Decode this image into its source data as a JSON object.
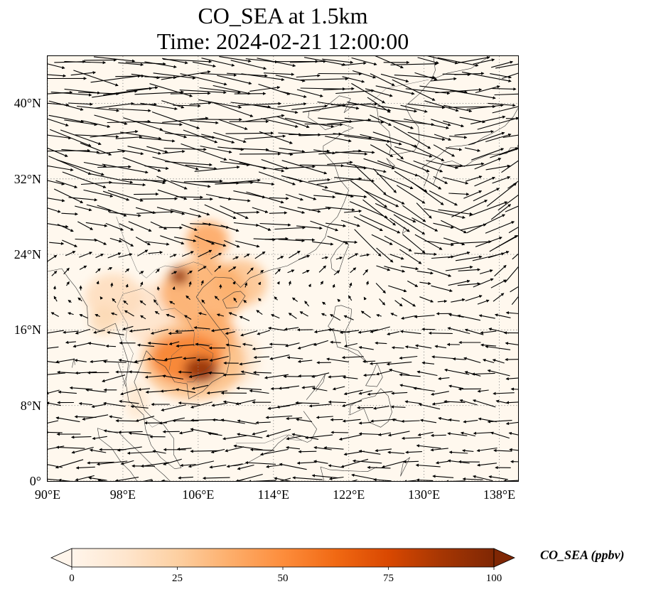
{
  "title": {
    "line1": "CO_SEA at 1.5km",
    "line2": "Time: 2024-02-21 12:00:00"
  },
  "map": {
    "extent": {
      "lon_min": 90,
      "lon_max": 140,
      "lat_min": 0,
      "lat_max": 45
    },
    "lat_ticks": [
      {
        "value": 0,
        "label": "0°"
      },
      {
        "value": 8,
        "label": "8°N"
      },
      {
        "value": 16,
        "label": "16°N"
      },
      {
        "value": 24,
        "label": "24°N"
      },
      {
        "value": 32,
        "label": "32°N"
      },
      {
        "value": 40,
        "label": "40°N"
      }
    ],
    "lon_ticks": [
      {
        "value": 90,
        "label": "90°E"
      },
      {
        "value": 98,
        "label": "98°E"
      },
      {
        "value": 106,
        "label": "106°E"
      },
      {
        "value": 114,
        "label": "114°E"
      },
      {
        "value": 122,
        "label": "122°E"
      },
      {
        "value": 130,
        "label": "130°E"
      },
      {
        "value": 138,
        "label": "138°E"
      }
    ],
    "gridlines": "dotted",
    "background_color": "#fff8ee",
    "coast_color": "#333333",
    "arrow_color": "#000000",
    "concentration_regions": [
      {
        "lon": 106.3,
        "lat": 11.8,
        "rlon": 1.8,
        "rlat": 1.4,
        "value": 95
      },
      {
        "lon": 104.8,
        "lat": 13.0,
        "rlon": 3.8,
        "rlat": 2.6,
        "value": 55
      },
      {
        "lon": 105.5,
        "lat": 12.8,
        "rlon": 5.5,
        "rlat": 4.2,
        "value": 32
      },
      {
        "lon": 107.5,
        "lat": 15.5,
        "rlon": 2.5,
        "rlat": 2.2,
        "value": 40
      },
      {
        "lon": 104.0,
        "lat": 21.7,
        "rlon": 1.0,
        "rlat": 0.9,
        "value": 95
      },
      {
        "lon": 106.5,
        "lat": 20.0,
        "rlon": 4.5,
        "rlat": 3.5,
        "value": 38
      },
      {
        "lon": 107.0,
        "lat": 25.5,
        "rlon": 2.2,
        "rlat": 2.0,
        "value": 42
      },
      {
        "lon": 110.5,
        "lat": 21.0,
        "rlon": 2.8,
        "rlat": 2.5,
        "value": 30
      },
      {
        "lon": 97.0,
        "lat": 19.5,
        "rlon": 3.0,
        "rlat": 2.5,
        "value": 18
      },
      {
        "lon": 96.0,
        "lat": 17.0,
        "rlon": 1.5,
        "rlat": 1.5,
        "value": 20
      },
      {
        "lon": 99.5,
        "lat": 8.5,
        "rlon": 1.2,
        "rlat": 2.0,
        "value": 12
      },
      {
        "lon": 110.0,
        "lat": 13.0,
        "rlon": 2.5,
        "rlat": 3.0,
        "value": 12
      },
      {
        "lon": 102.0,
        "lat": 17.5,
        "rlon": 4.0,
        "rlat": 3.5,
        "value": 14
      }
    ]
  },
  "colorbar": {
    "label": "CO_SEA (ppbv)",
    "min": 0,
    "max": 100,
    "ticks": [
      {
        "value": 0,
        "label": "0"
      },
      {
        "value": 25,
        "label": "25"
      },
      {
        "value": 50,
        "label": "50"
      },
      {
        "value": 75,
        "label": "75"
      },
      {
        "value": 100,
        "label": "100"
      }
    ],
    "stops": [
      "#fff5eb",
      "#fee6ce",
      "#fdd0a2",
      "#fdae6b",
      "#fd8d3c",
      "#f16913",
      "#d94801",
      "#a63603",
      "#7f2704"
    ],
    "extend": "both"
  }
}
